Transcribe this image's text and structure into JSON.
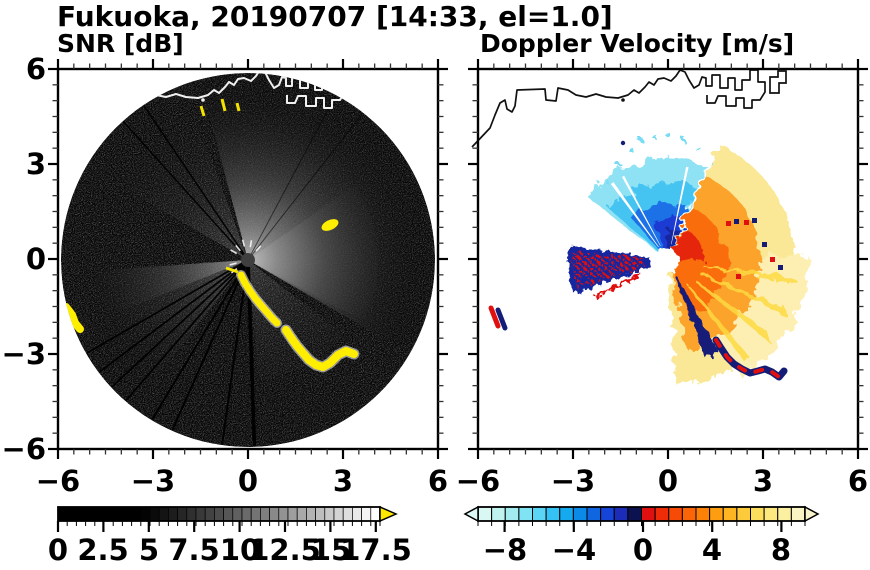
{
  "title": "Fukuoka, 20190707 [14:33, el=1.0]",
  "chart_data": [
    {
      "type": "heatmap",
      "variant": "radar-ppi-scan",
      "title": "SNR [dB]",
      "xlim": [
        -6,
        6
      ],
      "ylim": [
        -6,
        6
      ],
      "xtick_values": [
        -6,
        -3,
        0,
        3,
        6
      ],
      "xticks": [
        "−6",
        "−3",
        "0",
        "3",
        "6"
      ],
      "ytick_values": [
        6,
        3,
        0,
        -3,
        -6
      ],
      "yticks": [
        "6",
        "3",
        "0",
        "−3",
        "−6"
      ],
      "minor_tick_step": 0.5,
      "grid": false,
      "radar_center": [
        -0.05,
        0.0
      ],
      "scan_radius_km": 5.9,
      "colorbar": {
        "orientation": "horizontal",
        "ticks": [
          "0",
          "2.5",
          "5",
          "7.5",
          "10",
          "12.5",
          "15",
          "17.5"
        ],
        "tick_values": [
          0,
          2.5,
          5,
          7.5,
          10,
          12.5,
          15,
          17.5
        ],
        "range": [
          0,
          17.7
        ],
        "colormap": "grayscale",
        "min_color": "#000000",
        "max_color": "#ffffff",
        "over_arrow_color": "#ffe800",
        "segments": 35
      },
      "features": {
        "clutter_color": "#ffee00",
        "coastline_color": "#f0f0f0"
      }
    },
    {
      "type": "heatmap",
      "variant": "radar-ppi-scan",
      "title": "Doppler Velocity [m/s]",
      "xlim": [
        -6,
        6
      ],
      "ylim": [
        -6,
        6
      ],
      "xtick_values": [
        -6,
        -3,
        0,
        3,
        6
      ],
      "xticks": [
        "−6",
        "−3",
        "0",
        "3",
        "6"
      ],
      "minor_tick_step": 0.5,
      "grid": false,
      "colorbar": {
        "orientation": "horizontal",
        "ticks": [
          "−8",
          "−4",
          "0",
          "4",
          "8"
        ],
        "tick_values": [
          -8,
          -4,
          0,
          4,
          8
        ],
        "range": [
          -9.5,
          9.5
        ],
        "segment_colors": [
          "#d9f8f3",
          "#c0f3ef",
          "#a2ecef",
          "#80e3f3",
          "#5ad5f5",
          "#34c2f4",
          "#15aaf0",
          "#0b8ae8",
          "#0f66e0",
          "#1544d6",
          "#1b2db8",
          "#0c1150",
          "#e11010",
          "#ee2c07",
          "#f64a06",
          "#fa6607",
          "#fc8207",
          "#fd9d10",
          "#fdb522",
          "#fdca3c",
          "#fddd5c",
          "#fce87e",
          "#fbefa0",
          "#faf3c4"
        ],
        "under_arrow_color": "#dcf8f4",
        "over_arrow_color": "#faf4cc"
      },
      "features": {
        "away_core_color": "#f96d08",
        "toward_core_color": "#1d3bd2",
        "coastline_color": "#111111"
      }
    }
  ]
}
